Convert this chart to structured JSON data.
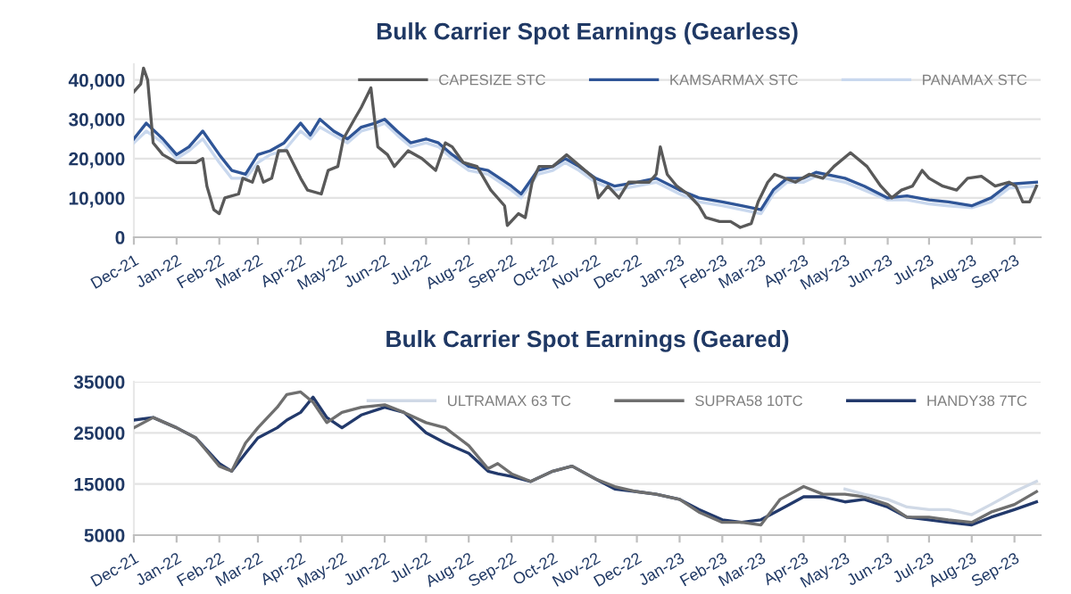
{
  "chart_data": [
    {
      "type": "line",
      "title": "Bulk Carrier Spot Earnings (Gearless)",
      "grid": "y",
      "legend": "top right",
      "marker": "none",
      "line_style": "solid",
      "xlim": [
        "2021-12-01",
        "2023-09-20"
      ],
      "ylim": [
        0,
        44000
      ],
      "yticks": [
        {
          "value": 0,
          "label": "0"
        },
        {
          "value": 10000,
          "label": "10,000"
        },
        {
          "value": 20000,
          "label": "20,000"
        },
        {
          "value": 30000,
          "label": "30,000"
        },
        {
          "value": 40000,
          "label": "40,000"
        }
      ],
      "xticks": [
        {
          "value": "2021-12-01",
          "label": "Dec-21"
        },
        {
          "value": "2022-01-01",
          "label": "Jan-22"
        },
        {
          "value": "2022-02-01",
          "label": "Feb-22"
        },
        {
          "value": "2022-03-01",
          "label": "Mar-22"
        },
        {
          "value": "2022-04-01",
          "label": "Apr-22"
        },
        {
          "value": "2022-05-01",
          "label": "May-22"
        },
        {
          "value": "2022-06-01",
          "label": "Jun-22"
        },
        {
          "value": "2022-07-01",
          "label": "Jul-22"
        },
        {
          "value": "2022-08-01",
          "label": "Aug-22"
        },
        {
          "value": "2022-09-01",
          "label": "Sep-22"
        },
        {
          "value": "2022-10-01",
          "label": "Oct-22"
        },
        {
          "value": "2022-11-01",
          "label": "Nov-22"
        },
        {
          "value": "2022-12-01",
          "label": "Dec-22"
        },
        {
          "value": "2023-01-01",
          "label": "Jan-23"
        },
        {
          "value": "2023-02-01",
          "label": "Feb-23"
        },
        {
          "value": "2023-03-01",
          "label": "Mar-23"
        },
        {
          "value": "2023-04-01",
          "label": "Apr-23"
        },
        {
          "value": "2023-05-01",
          "label": "May-23"
        },
        {
          "value": "2023-06-01",
          "label": "Jun-23"
        },
        {
          "value": "2023-07-01",
          "label": "Jul-23"
        },
        {
          "value": "2023-08-01",
          "label": "Aug-23"
        },
        {
          "value": "2023-09-01",
          "label": "Sep-23"
        }
      ],
      "x": [
        "2021-12-01",
        "2021-12-10",
        "2021-12-22",
        "2022-01-01",
        "2022-01-10",
        "2022-01-20",
        "2022-02-01",
        "2022-02-10",
        "2022-02-20",
        "2022-03-01",
        "2022-03-10",
        "2022-03-20",
        "2022-04-01",
        "2022-04-08",
        "2022-04-15",
        "2022-04-25",
        "2022-05-05",
        "2022-05-15",
        "2022-05-25",
        "2022-06-01",
        "2022-06-10",
        "2022-06-20",
        "2022-07-01",
        "2022-07-10",
        "2022-07-20",
        "2022-08-01",
        "2022-08-15",
        "2022-09-01",
        "2022-09-08",
        "2022-09-20",
        "2022-10-01",
        "2022-10-10",
        "2022-10-20",
        "2022-11-01",
        "2022-11-15",
        "2022-12-01",
        "2022-12-15",
        "2023-01-01",
        "2023-01-15",
        "2023-02-01",
        "2023-02-15",
        "2023-03-01",
        "2023-03-10",
        "2023-03-20",
        "2023-04-01",
        "2023-04-10",
        "2023-05-01",
        "2023-05-15",
        "2023-06-01",
        "2023-06-15",
        "2023-07-01",
        "2023-07-15",
        "2023-08-01",
        "2023-08-15",
        "2023-08-28",
        "2023-09-17"
      ],
      "series": [
        {
          "name": "CAPESIZE STC",
          "color": "#595959",
          "x": [
            "2021-12-01",
            "2021-12-06",
            "2021-12-08",
            "2021-12-11",
            "2021-12-15",
            "2021-12-22",
            "2022-01-01",
            "2022-01-15",
            "2022-01-20",
            "2022-01-23",
            "2022-01-28",
            "2022-02-01",
            "2022-02-05",
            "2022-02-15",
            "2022-02-18",
            "2022-02-25",
            "2022-03-01",
            "2022-03-05",
            "2022-03-11",
            "2022-03-16",
            "2022-03-22",
            "2022-04-01",
            "2022-04-06",
            "2022-04-16",
            "2022-04-21",
            "2022-04-28",
            "2022-05-02",
            "2022-05-10",
            "2022-05-15",
            "2022-05-22",
            "2022-05-27",
            "2022-06-03",
            "2022-06-08",
            "2022-06-18",
            "2022-06-28",
            "2022-07-08",
            "2022-07-15",
            "2022-07-20",
            "2022-07-28",
            "2022-08-07",
            "2022-08-17",
            "2022-08-27",
            "2022-08-29",
            "2022-09-06",
            "2022-09-11",
            "2022-09-16",
            "2022-09-21",
            "2022-10-01",
            "2022-10-11",
            "2022-10-21",
            "2022-10-31",
            "2022-11-03",
            "2022-11-10",
            "2022-11-18",
            "2022-11-25",
            "2022-12-10",
            "2022-12-15",
            "2022-12-18",
            "2022-12-23",
            "2022-12-30",
            "2023-01-07",
            "2023-01-15",
            "2023-01-20",
            "2023-01-30",
            "2023-02-07",
            "2023-02-14",
            "2023-02-22",
            "2023-02-27",
            "2023-03-06",
            "2023-03-11",
            "2023-03-26",
            "2023-04-05",
            "2023-04-15",
            "2023-04-23",
            "2023-05-05",
            "2023-05-17",
            "2023-05-27",
            "2023-06-04",
            "2023-06-11",
            "2023-06-19",
            "2023-06-26",
            "2023-07-01",
            "2023-07-11",
            "2023-07-21",
            "2023-07-29",
            "2023-08-08",
            "2023-08-18",
            "2023-08-28",
            "2023-09-02",
            "2023-09-07",
            "2023-09-12",
            "2023-09-17"
          ],
          "values": [
            37000,
            39000,
            43000,
            40000,
            24000,
            21000,
            19000,
            19000,
            20000,
            13000,
            7000,
            6000,
            10000,
            11000,
            15000,
            14000,
            18000,
            14000,
            15000,
            22000,
            22000,
            15000,
            12000,
            11000,
            17000,
            18000,
            25000,
            30000,
            33000,
            38000,
            23000,
            21000,
            18000,
            22000,
            20000,
            17000,
            24000,
            23000,
            19000,
            18000,
            12000,
            8000,
            3000,
            6000,
            5000,
            14000,
            18000,
            18000,
            21000,
            18000,
            15000,
            10000,
            13000,
            10000,
            14000,
            14000,
            16000,
            23000,
            16000,
            13000,
            11000,
            8000,
            5000,
            4000,
            4000,
            2500,
            3500,
            9000,
            14000,
            16000,
            14000,
            16000,
            15000,
            18000,
            21500,
            18000,
            13000,
            10000,
            12000,
            13000,
            17000,
            15000,
            13000,
            12000,
            15000,
            15500,
            13000,
            14000,
            13000,
            9000,
            9000,
            13000
          ]
        },
        {
          "name": "KAMSARMAX STC",
          "color": "#2f5597",
          "values": [
            25000,
            29000,
            25000,
            21000,
            23000,
            27000,
            21000,
            17000,
            16000,
            21000,
            22000,
            24000,
            29000,
            26000,
            30000,
            27000,
            25000,
            28000,
            29000,
            30000,
            27000,
            24000,
            25000,
            24000,
            21000,
            18000,
            17000,
            13000,
            11000,
            17000,
            18000,
            20000,
            18000,
            15000,
            13000,
            14000,
            15000,
            12000,
            10000,
            9000,
            8000,
            7000,
            12000,
            15000,
            15000,
            16500,
            15000,
            13000,
            10000,
            10500,
            9500,
            9000,
            8000,
            10000,
            13500,
            14000
          ]
        },
        {
          "name": "PANAMAX STC",
          "color": "#c9d8ee",
          "values": [
            24000,
            27000,
            24000,
            20000,
            22000,
            25000,
            19000,
            15000,
            15000,
            19000,
            21000,
            22000,
            27000,
            25000,
            28000,
            26000,
            24000,
            27000,
            28000,
            29000,
            26000,
            23000,
            24000,
            23000,
            20000,
            17000,
            16000,
            12000,
            10000,
            16000,
            17000,
            19000,
            17000,
            14000,
            12000,
            13000,
            14000,
            11000,
            9000,
            8000,
            7000,
            6000,
            11000,
            14000,
            14000,
            15500,
            14000,
            12000,
            9500,
            9500,
            8500,
            8000,
            7500,
            9000,
            12500,
            13000
          ]
        }
      ]
    },
    {
      "type": "line",
      "title": "Bulk Carrier Spot Earnings (Geared)",
      "grid": "y",
      "legend": "top right",
      "marker": "none",
      "line_style": "solid",
      "xlim": [
        "2021-12-01",
        "2023-09-20"
      ],
      "ylim": [
        5000,
        35000
      ],
      "yticks": [
        5000,
        15000,
        25000,
        35000
      ],
      "xticks": [
        {
          "value": "2021-12-01",
          "label": "Dec-21"
        },
        {
          "value": "2022-01-01",
          "label": "Jan-22"
        },
        {
          "value": "2022-02-01",
          "label": "Feb-22"
        },
        {
          "value": "2022-03-01",
          "label": "Mar-22"
        },
        {
          "value": "2022-04-01",
          "label": "Apr-22"
        },
        {
          "value": "2022-05-01",
          "label": "May-22"
        },
        {
          "value": "2022-06-01",
          "label": "Jun-22"
        },
        {
          "value": "2022-07-01",
          "label": "Jul-22"
        },
        {
          "value": "2022-08-01",
          "label": "Aug-22"
        },
        {
          "value": "2022-09-01",
          "label": "Sep-22"
        },
        {
          "value": "2022-10-01",
          "label": "Oct-22"
        },
        {
          "value": "2022-11-01",
          "label": "Nov-22"
        },
        {
          "value": "2022-12-01",
          "label": "Dec-22"
        },
        {
          "value": "2023-01-01",
          "label": "Jan-23"
        },
        {
          "value": "2023-02-01",
          "label": "Feb-23"
        },
        {
          "value": "2023-03-01",
          "label": "Mar-23"
        },
        {
          "value": "2023-04-01",
          "label": "Apr-23"
        },
        {
          "value": "2023-05-01",
          "label": "May-23"
        },
        {
          "value": "2023-06-01",
          "label": "Jun-23"
        },
        {
          "value": "2023-07-01",
          "label": "Jul-23"
        },
        {
          "value": "2023-08-01",
          "label": "Aug-23"
        },
        {
          "value": "2023-09-01",
          "label": "Sep-23"
        }
      ],
      "x": [
        "2021-12-01",
        "2021-12-15",
        "2022-01-01",
        "2022-01-15",
        "2022-02-01",
        "2022-02-10",
        "2022-02-20",
        "2022-03-01",
        "2022-03-15",
        "2022-03-22",
        "2022-04-01",
        "2022-04-10",
        "2022-04-20",
        "2022-05-01",
        "2022-05-15",
        "2022-06-01",
        "2022-06-15",
        "2022-07-01",
        "2022-07-15",
        "2022-08-01",
        "2022-08-15",
        "2022-08-22",
        "2022-09-01",
        "2022-09-15",
        "2022-10-01",
        "2022-10-15",
        "2022-11-01",
        "2022-11-15",
        "2022-12-01",
        "2022-12-15",
        "2023-01-01",
        "2023-01-15",
        "2023-02-01",
        "2023-02-15",
        "2023-03-01",
        "2023-03-15",
        "2023-04-01",
        "2023-04-15",
        "2023-05-01",
        "2023-05-15",
        "2023-06-01",
        "2023-06-15",
        "2023-07-01",
        "2023-07-15",
        "2023-08-01",
        "2023-08-15",
        "2023-09-01",
        "2023-09-17"
      ],
      "series": [
        {
          "name": "ULTRAMAX 63 TC",
          "color": "#d0d9e6",
          "x": [
            "2023-05-01",
            "2023-05-15",
            "2023-06-01",
            "2023-06-15",
            "2023-07-01",
            "2023-07-15",
            "2023-08-01",
            "2023-08-15",
            "2023-09-01",
            "2023-09-17"
          ],
          "values": [
            14000,
            13000,
            12000,
            10500,
            10000,
            10000,
            9000,
            11000,
            13500,
            15500
          ]
        },
        {
          "name": "SUPRA58 10TC",
          "color": "#6f6f6f",
          "values": [
            26000,
            28000,
            26000,
            24000,
            18500,
            17500,
            23000,
            26000,
            30000,
            32500,
            33000,
            31000,
            27000,
            29000,
            30000,
            30500,
            29000,
            27000,
            26000,
            22500,
            18000,
            19000,
            17000,
            15500,
            17500,
            18500,
            16000,
            14500,
            13500,
            13000,
            12000,
            9500,
            7500,
            7500,
            7000,
            12000,
            14500,
            13000,
            13000,
            12500,
            11000,
            8500,
            8500,
            8000,
            7500,
            9500,
            11000,
            13500
          ]
        },
        {
          "name": "HANDY38 7TC",
          "color": "#22396b",
          "values": [
            27500,
            28000,
            26000,
            24000,
            19000,
            17500,
            21000,
            24000,
            26000,
            27500,
            29000,
            32000,
            28000,
            26000,
            28500,
            30000,
            29000,
            25000,
            23000,
            21000,
            17500,
            17000,
            16500,
            15500,
            17500,
            18500,
            16000,
            14000,
            13500,
            13000,
            12000,
            10000,
            8000,
            7500,
            8000,
            10000,
            12500,
            12500,
            11500,
            12000,
            10500,
            8500,
            8000,
            7500,
            7000,
            8500,
            10000,
            11500
          ]
        }
      ]
    }
  ]
}
